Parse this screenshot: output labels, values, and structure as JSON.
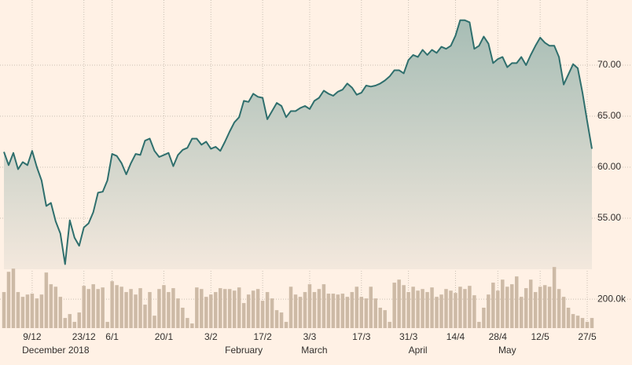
{
  "chart_data": [
    {
      "type": "area",
      "color": "#2f6f6d",
      "fill_top": "#a7bdb5",
      "fill_bottom": "#f3e8dd",
      "xlim": [
        0,
        125
      ],
      "ylim": [
        50,
        76
      ],
      "grid": true,
      "yticks": [
        {
          "value": 55,
          "label": "55.00"
        },
        {
          "value": 60,
          "label": "60.00"
        },
        {
          "value": 65,
          "label": "65.00"
        },
        {
          "value": 70,
          "label": "70.00"
        }
      ],
      "xticks": [
        {
          "value": 6,
          "label": "9/12"
        },
        {
          "value": 17,
          "label": "23/12"
        },
        {
          "value": 23,
          "label": "6/1"
        },
        {
          "value": 34,
          "label": "20/1"
        },
        {
          "value": 44,
          "label": "3/2"
        },
        {
          "value": 55,
          "label": "17/2"
        },
        {
          "value": 65,
          "label": "3/3"
        },
        {
          "value": 76,
          "label": "17/3"
        },
        {
          "value": 86,
          "label": "31/3"
        },
        {
          "value": 96,
          "label": "14/4"
        },
        {
          "value": 105,
          "label": "28/4"
        },
        {
          "value": 114,
          "label": "12/5"
        },
        {
          "value": 124,
          "label": "27/5"
        }
      ],
      "month_ticks": [
        {
          "value": 11,
          "label": "December 2018"
        },
        {
          "value": 51,
          "label": "February"
        },
        {
          "value": 66,
          "label": "March"
        },
        {
          "value": 88,
          "label": "April"
        },
        {
          "value": 107,
          "label": "May"
        }
      ],
      "values": [
        61.5,
        60.2,
        61.4,
        59.8,
        60.5,
        60.2,
        61.6,
        60.0,
        58.7,
        56.2,
        56.5,
        54.7,
        53.5,
        50.5,
        54.8,
        53.1,
        52.3,
        54.1,
        54.5,
        55.6,
        57.5,
        57.6,
        58.7,
        61.3,
        61.1,
        60.4,
        59.3,
        60.4,
        61.3,
        61.2,
        62.6,
        62.8,
        61.6,
        61.0,
        61.2,
        61.4,
        60.1,
        61.2,
        61.7,
        61.9,
        62.8,
        62.8,
        62.2,
        62.5,
        61.8,
        62.0,
        61.6,
        62.5,
        63.5,
        64.4,
        64.9,
        66.5,
        66.4,
        67.2,
        66.9,
        66.8,
        64.7,
        65.5,
        66.3,
        66.0,
        64.9,
        65.5,
        65.5,
        65.8,
        66.0,
        65.7,
        66.5,
        66.8,
        67.5,
        67.2,
        67.0,
        67.4,
        67.6,
        68.2,
        67.8,
        67.1,
        67.3,
        68.0,
        67.9,
        68.0,
        68.2,
        68.5,
        68.9,
        69.5,
        69.5,
        69.2,
        70.5,
        71.0,
        70.8,
        71.5,
        71.0,
        71.5,
        71.2,
        71.8,
        71.6,
        71.9,
        72.9,
        74.4,
        74.4,
        74.2,
        71.6,
        71.9,
        72.8,
        72.1,
        70.2,
        70.6,
        70.8,
        69.8,
        70.2,
        70.2,
        70.8,
        70.0,
        71.0,
        71.9,
        72.7,
        72.2,
        71.9,
        71.9,
        70.8,
        68.1,
        69.1,
        70.1,
        69.7,
        67.3,
        64.5,
        61.8
      ]
    },
    {
      "type": "bar",
      "color": "#cdbaa6",
      "xlim": [
        0,
        125
      ],
      "ylim": [
        0,
        450000
      ],
      "grid": true,
      "yticks": [
        {
          "value": 200000,
          "label": "200.0k"
        }
      ],
      "values": [
        249000,
        389000,
        411000,
        249000,
        216000,
        232000,
        238000,
        205000,
        232000,
        384000,
        303000,
        286000,
        216000,
        70000,
        97000,
        43000,
        108000,
        292000,
        270000,
        303000,
        270000,
        281000,
        43000,
        324000,
        297000,
        286000,
        249000,
        270000,
        232000,
        276000,
        162000,
        249000,
        86000,
        270000,
        297000,
        249000,
        276000,
        205000,
        141000,
        70000,
        32000,
        281000,
        270000,
        216000,
        232000,
        249000,
        276000,
        270000,
        270000,
        259000,
        281000,
        173000,
        232000,
        259000,
        270000,
        189000,
        249000,
        205000,
        124000,
        108000,
        43000,
        286000,
        232000,
        216000,
        249000,
        303000,
        249000,
        270000,
        303000,
        238000,
        238000,
        232000,
        238000,
        216000,
        249000,
        286000,
        216000,
        205000,
        286000,
        205000,
        141000,
        124000,
        43000,
        314000,
        335000,
        297000,
        249000,
        286000,
        259000,
        270000,
        249000,
        281000,
        216000,
        232000,
        270000,
        259000,
        243000,
        286000,
        270000,
        292000,
        227000,
        43000,
        141000,
        232000,
        314000,
        259000,
        335000,
        286000,
        303000,
        357000,
        216000,
        276000,
        335000,
        249000,
        286000,
        297000,
        286000,
        422000,
        270000,
        216000,
        141000,
        97000,
        86000,
        70000,
        43000,
        70000
      ]
    }
  ]
}
